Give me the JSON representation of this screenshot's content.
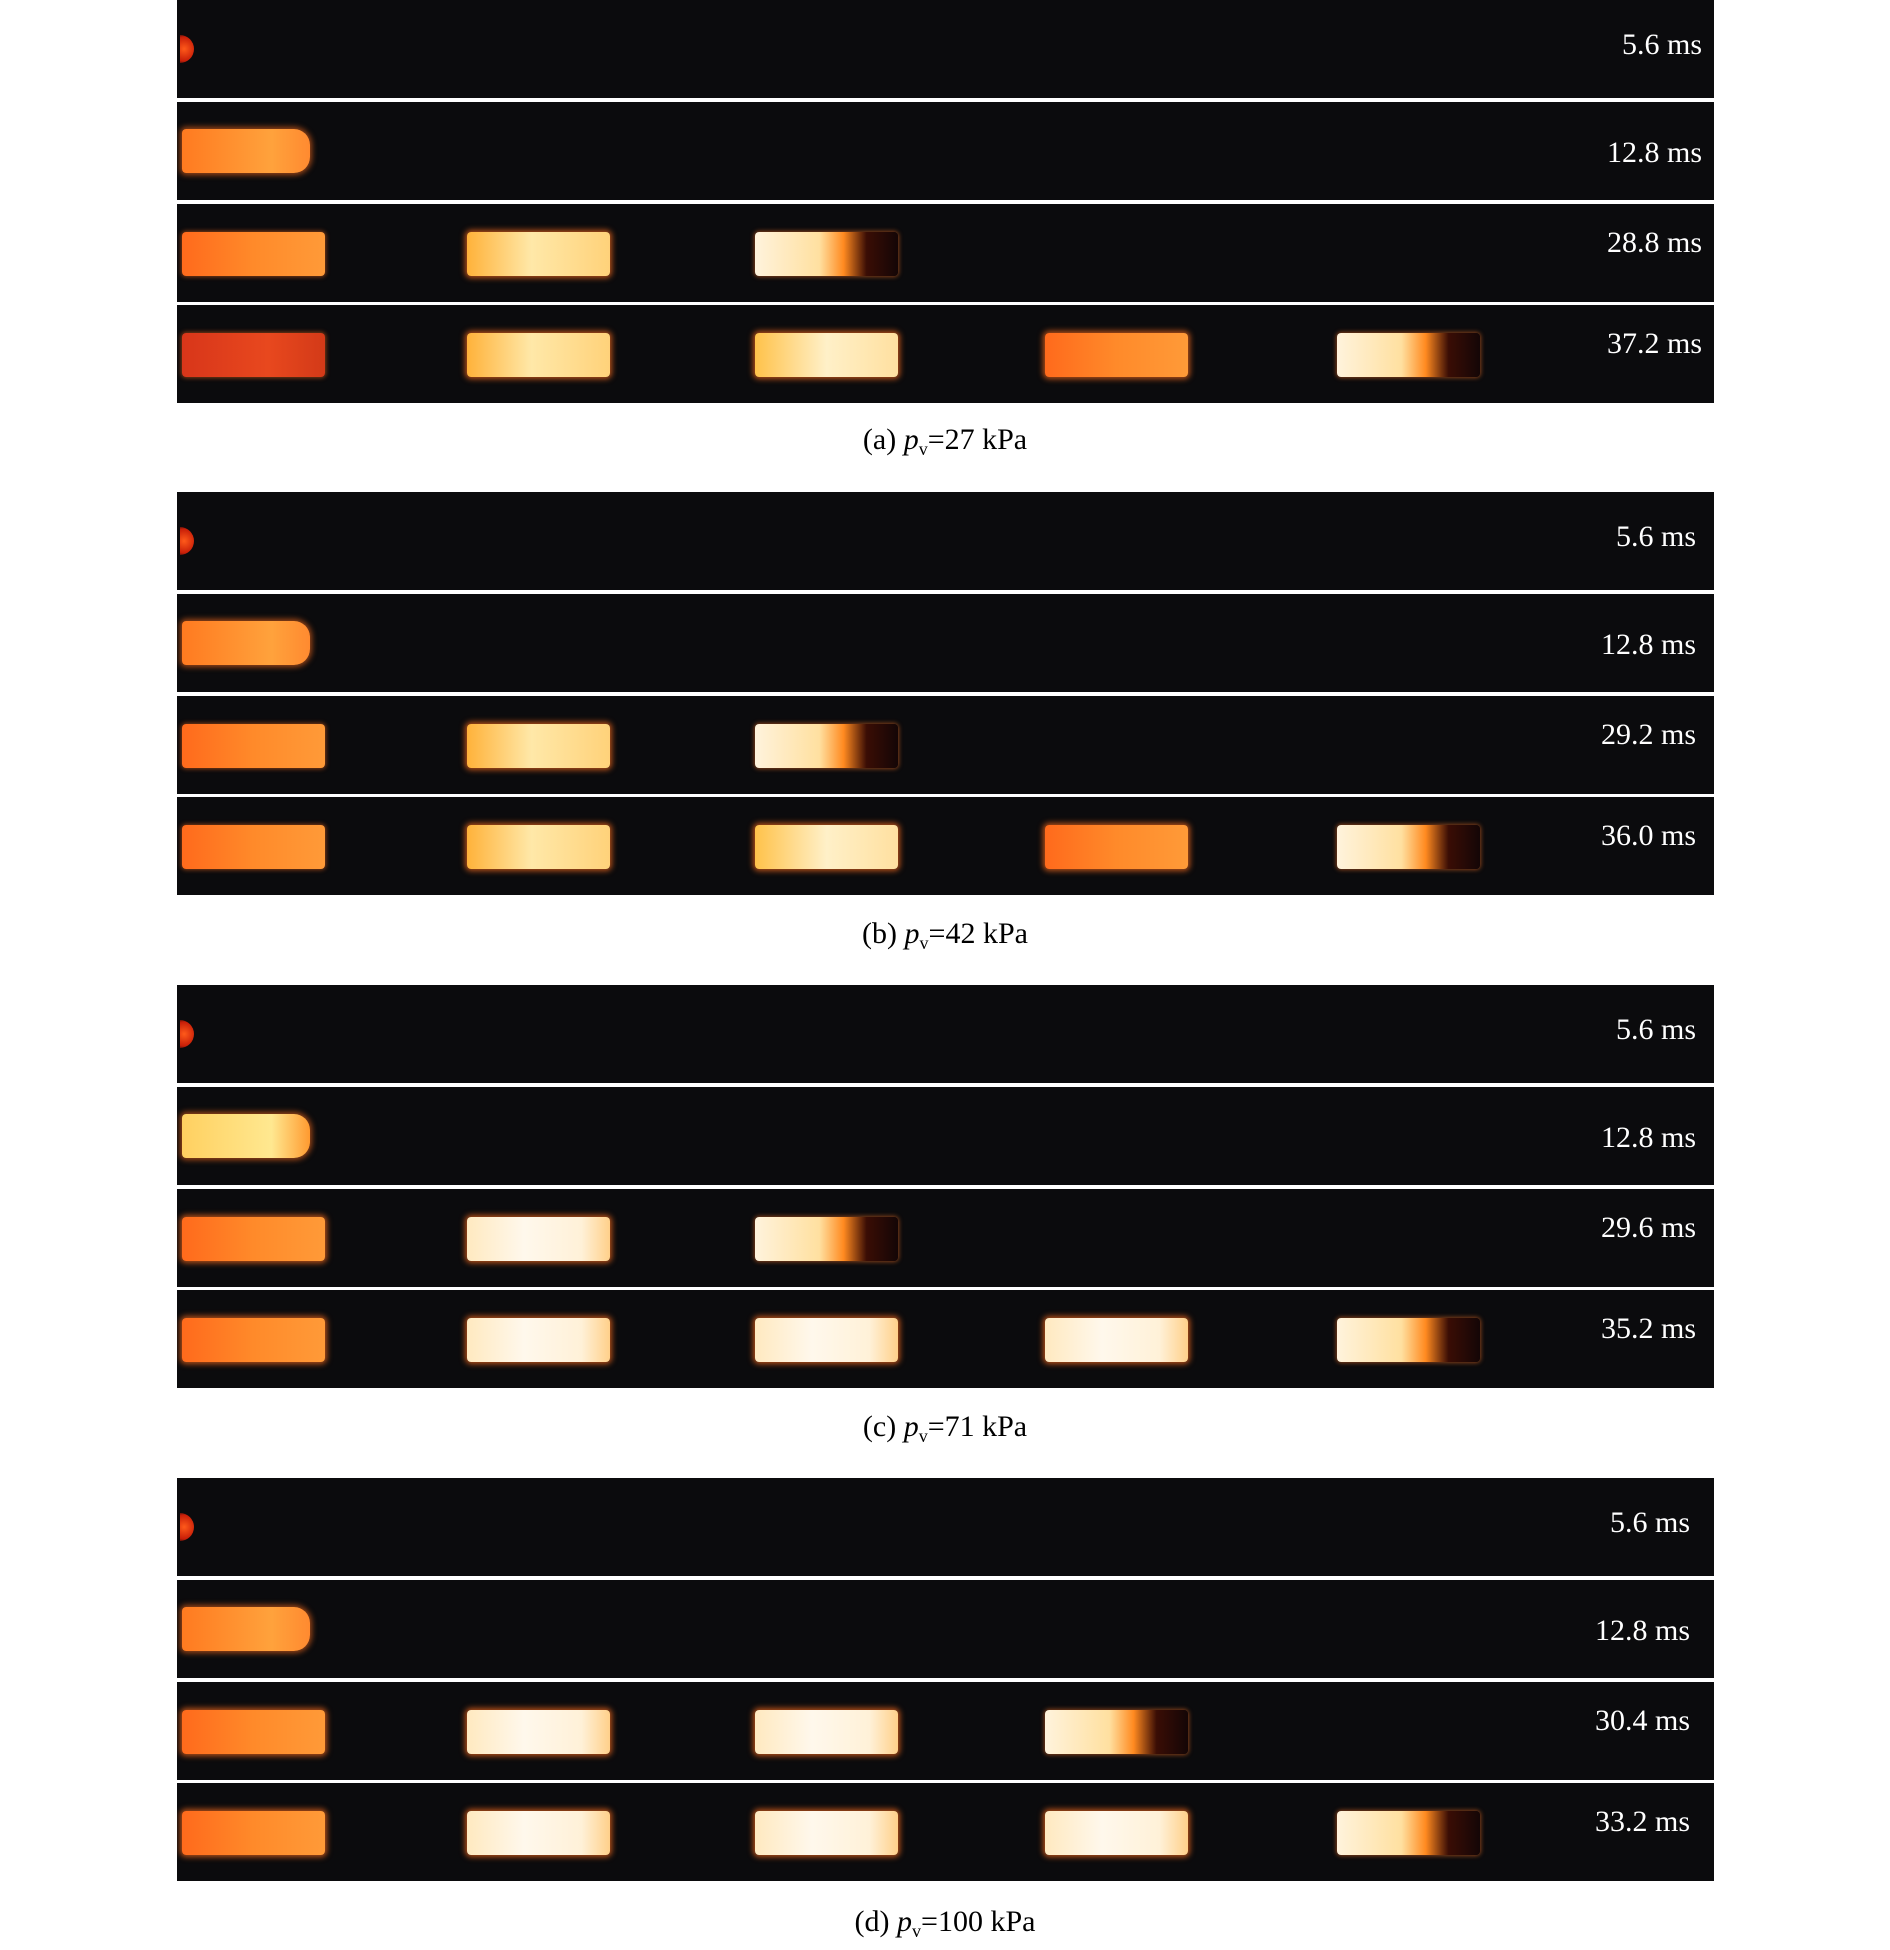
{
  "panels": [
    {
      "caption": {
        "prefix": "(a) ",
        "var": "p",
        "sub": "v",
        "suffix": "=27 kPa"
      },
      "frames": [
        {
          "time": "5.6 ms",
          "chambers": 0
        },
        {
          "time": "12.8 ms",
          "chambers": 1
        },
        {
          "time": "28.8 ms",
          "chambers": 3
        },
        {
          "time": "37.2 ms",
          "chambers": 5
        }
      ]
    },
    {
      "caption": {
        "prefix": "(b) ",
        "var": "p",
        "sub": "v",
        "suffix": "=42 kPa"
      },
      "frames": [
        {
          "time": "5.6 ms",
          "chambers": 0
        },
        {
          "time": "12.8 ms",
          "chambers": 1
        },
        {
          "time": "29.2 ms",
          "chambers": 3
        },
        {
          "time": "36.0 ms",
          "chambers": 5
        }
      ]
    },
    {
      "caption": {
        "prefix": "(c) ",
        "var": "p",
        "sub": "v",
        "suffix": "=71 kPa"
      },
      "frames": [
        {
          "time": "5.6 ms",
          "chambers": 0
        },
        {
          "time": "12.8 ms",
          "chambers": 1
        },
        {
          "time": "29.6 ms",
          "chambers": 3
        },
        {
          "time": "35.2 ms",
          "chambers": 5
        }
      ]
    },
    {
      "caption": {
        "prefix": "(d) ",
        "var": "p",
        "sub": "v",
        "suffix": "=100 kPa"
      },
      "frames": [
        {
          "time": "5.6 ms",
          "chambers": 0
        },
        {
          "time": "12.8 ms",
          "chambers": 1
        },
        {
          "time": "30.4 ms",
          "chambers": 4
        },
        {
          "time": "33.2 ms",
          "chambers": 5
        }
      ]
    }
  ]
}
